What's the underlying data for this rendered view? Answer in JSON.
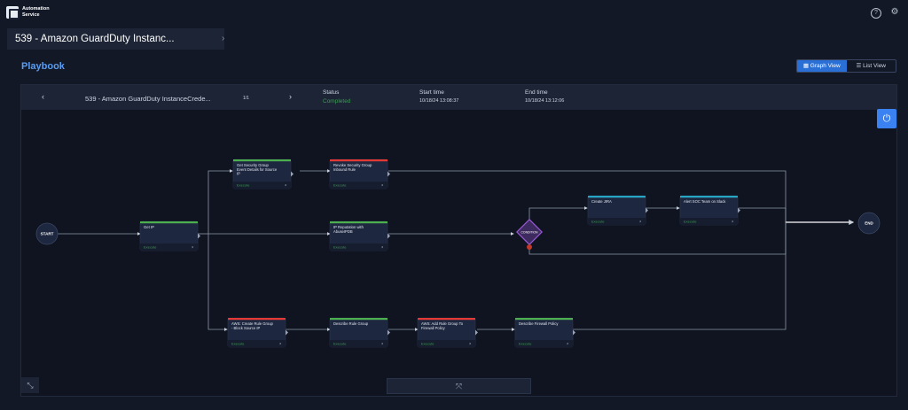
{
  "app": {
    "brand_line1": "Automation",
    "brand_line2": "Service"
  },
  "header_icons": {
    "help": "?",
    "settings": "⚙"
  },
  "breadcrumb": {
    "title": "539 - Amazon GuardDuty Instanc...",
    "chevron": "›"
  },
  "page": {
    "title": "Playbook"
  },
  "view_toggle": {
    "graph_label": "Graph View",
    "list_label": "List View"
  },
  "execution": {
    "prev": "‹",
    "next": "›",
    "name": "539 - Amazon GuardDuty InstanceCrede...",
    "pager": "1/1",
    "status_label": "Status",
    "status_value": "Completed",
    "start_label": "Start time",
    "start_value": "10/18/24 13:08:37",
    "end_label": "End time",
    "end_value": "10/18/24 13:12:06"
  },
  "flow": {
    "start_label": "START",
    "end_label": "END",
    "condition_label": "CONDITION",
    "status_text": "Execute",
    "nodes": [
      {
        "id": "get-ip",
        "title": [
          "Get IP"
        ],
        "accent": "#4caf50"
      },
      {
        "id": "get-sg",
        "title": [
          "Get Security Group",
          "Event Details for Source",
          "IP"
        ],
        "accent": "#4caf50"
      },
      {
        "id": "revoke-sg",
        "title": [
          "Revoke Security Group",
          "Inbound Rule"
        ],
        "accent": "#e53935"
      },
      {
        "id": "ip-rep",
        "title": [
          "IP Reputation with",
          "AbuseIPDB"
        ],
        "accent": "#4caf50"
      },
      {
        "id": "create-jira",
        "title": [
          "Create JIRA"
        ],
        "accent": "#26a6c4"
      },
      {
        "id": "alert-soc",
        "title": [
          "Alert SOC Team on Slack"
        ],
        "accent": "#26a6c4"
      },
      {
        "id": "aws-create-rg",
        "title": [
          "AWS: Create Rule Group",
          "- Block Source IP"
        ],
        "accent": "#e53935"
      },
      {
        "id": "describe-rg",
        "title": [
          "Describe Rule Group"
        ],
        "accent": "#4caf50"
      },
      {
        "id": "aws-add-rg",
        "title": [
          "AWS: Add Rule Group To",
          "Firewall Policy"
        ],
        "accent": "#e53935"
      },
      {
        "id": "describe-fp",
        "title": [
          "Describe Firewall Policy"
        ],
        "accent": "#4caf50"
      }
    ]
  },
  "controls": {
    "power_icon": "⏻",
    "fit_icon": "⤡",
    "collapse_icon": "⤧"
  }
}
